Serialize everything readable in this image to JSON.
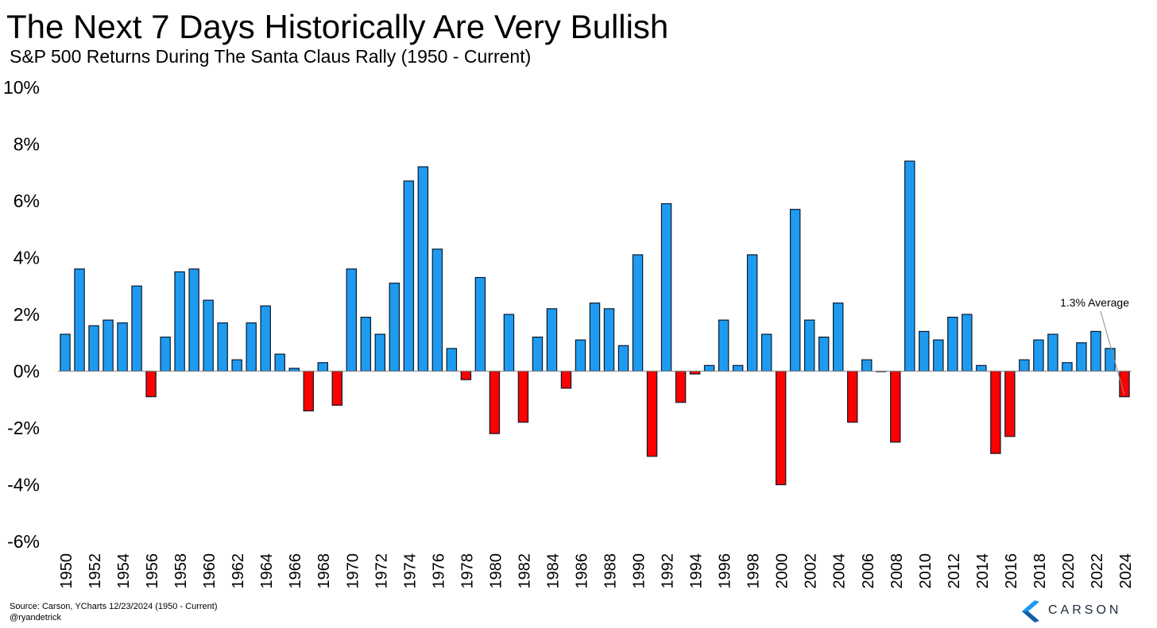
{
  "header": {
    "title": "The Next 7 Days Historically Are Very Bullish",
    "subtitle": "S&P 500 Returns During The Santa Claus Rally (1950 - Current)"
  },
  "footer": {
    "source": "Source: Carson, YCharts 12/23/2024 (1950 - Current)",
    "handle": "@ryandetrick"
  },
  "logo": {
    "text": "CARSON",
    "icon": "carson-chevron-icon",
    "color": "#1c2b3a"
  },
  "chart_data": {
    "type": "bar",
    "title": "The Next 7 Days Historically Are Very Bullish",
    "subtitle": "S&P 500 Returns During The Santa Claus Rally (1950 - Current)",
    "unit": "%",
    "ylim": [
      -6,
      10
    ],
    "yticks": [
      -6,
      -4,
      -2,
      0,
      2,
      4,
      6,
      8,
      10
    ],
    "ytick_labels": [
      "-6%",
      "-4%",
      "-2%",
      "0%",
      "2%",
      "4%",
      "6%",
      "8%",
      "10%"
    ],
    "xtick_labels": [
      "1950",
      "1952",
      "1954",
      "1956",
      "1958",
      "1960",
      "1962",
      "1964",
      "1966",
      "1968",
      "1970",
      "1972",
      "1974",
      "1976",
      "1978",
      "1980",
      "1982",
      "1984",
      "1986",
      "1988",
      "1990",
      "1992",
      "1994",
      "1996",
      "1998",
      "2000",
      "2002",
      "2004",
      "2006",
      "2008",
      "2010",
      "2012",
      "2014",
      "2016",
      "2018",
      "2020",
      "2022",
      "2024"
    ],
    "categories": [
      "1950",
      "1951",
      "1952",
      "1953",
      "1954",
      "1955",
      "1956",
      "1957",
      "1958",
      "1959",
      "1960",
      "1961",
      "1962",
      "1963",
      "1964",
      "1965",
      "1966",
      "1967",
      "1968",
      "1969",
      "1970",
      "1971",
      "1972",
      "1973",
      "1974",
      "1975",
      "1976",
      "1977",
      "1978",
      "1979",
      "1980",
      "1981",
      "1982",
      "1983",
      "1984",
      "1985",
      "1986",
      "1987",
      "1988",
      "1989",
      "1990",
      "1991",
      "1992",
      "1993",
      "1994",
      "1995",
      "1996",
      "1997",
      "1998",
      "1999",
      "2000",
      "2001",
      "2002",
      "2003",
      "2004",
      "2005",
      "2006",
      "2007",
      "2008",
      "2009",
      "2010",
      "2011",
      "2012",
      "2013",
      "2014",
      "2015",
      "2016",
      "2017",
      "2018",
      "2019",
      "2020",
      "2021",
      "2022",
      "2023",
      "2024"
    ],
    "values": [
      1.3,
      3.6,
      1.6,
      1.8,
      1.7,
      3.0,
      -0.9,
      1.2,
      3.5,
      3.6,
      2.5,
      1.7,
      0.4,
      1.7,
      2.3,
      0.6,
      0.1,
      -1.4,
      0.3,
      -1.2,
      3.6,
      1.9,
      1.3,
      3.1,
      6.7,
      7.2,
      4.3,
      0.8,
      -0.3,
      3.3,
      -2.2,
      2.0,
      -1.8,
      1.2,
      2.2,
      -0.6,
      1.1,
      2.4,
      2.2,
      0.9,
      4.1,
      -3.0,
      5.9,
      -1.1,
      -0.1,
      0.2,
      1.8,
      0.2,
      4.1,
      1.3,
      -4.0,
      5.7,
      1.8,
      1.2,
      2.4,
      -1.8,
      0.4,
      0.0,
      -2.5,
      7.4,
      1.4,
      1.1,
      1.9,
      2.0,
      0.2,
      -2.9,
      -2.3,
      0.4,
      1.1,
      1.3,
      0.3,
      1.0,
      1.4,
      0.8,
      -0.9
    ],
    "average": {
      "value": 1.3,
      "label": "1.3% Average"
    },
    "colors": {
      "positive": "#1e9bf0",
      "negative": "#ff0000",
      "border": "#0a1a2e"
    },
    "grid": false,
    "legend": "none"
  }
}
